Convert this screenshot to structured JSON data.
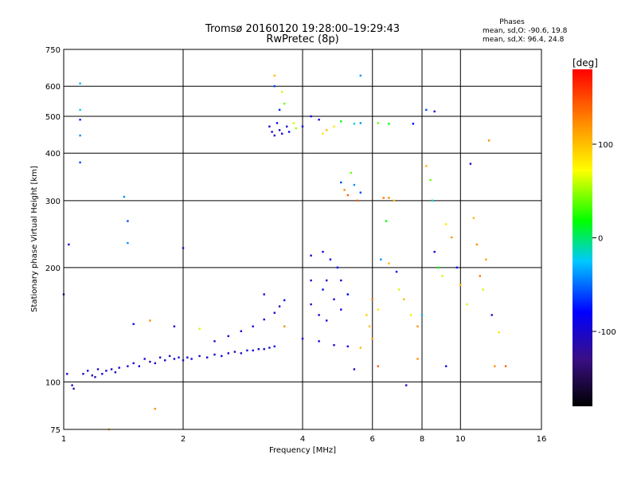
{
  "chart_data": {
    "type": "scatter",
    "title": "Tromsø 20160120 19:28:00–19:29:43",
    "subtitle": "RwPretec (8p)",
    "phases_box": {
      "heading": "Phases",
      "line_o": "mean, sd,O: -90.6, 19.8",
      "line_x": "mean, sd,X:  96.4, 24.8"
    },
    "xlabel": "Frequency [MHz]",
    "ylabel": "Stationary phase Virtual Height [km]",
    "x_scale": "log",
    "y_scale": "log",
    "xlim": [
      1,
      16
    ],
    "ylim": [
      75,
      750
    ],
    "x_ticks": [
      {
        "value": 1,
        "label": "1"
      },
      {
        "value": 2,
        "label": "2"
      },
      {
        "value": 4,
        "label": "4"
      },
      {
        "value": 6,
        "label": "6"
      },
      {
        "value": 8,
        "label": "8"
      },
      {
        "value": 10,
        "label": "10"
      },
      {
        "value": 16,
        "label": "16"
      }
    ],
    "y_ticks": [
      {
        "value": 75,
        "label": "75"
      },
      {
        "value": 100,
        "label": "100"
      },
      {
        "value": 200,
        "label": "200"
      },
      {
        "value": 300,
        "label": "300"
      },
      {
        "value": 400,
        "label": "400"
      },
      {
        "value": 500,
        "label": "500"
      },
      {
        "value": 600,
        "label": "600"
      },
      {
        "value": 750,
        "label": "750"
      }
    ],
    "grid": true,
    "colorbar": {
      "label": "[deg]",
      "range": [
        -180,
        180
      ],
      "tick_values": [
        100,
        0,
        -100
      ],
      "tick_labels": [
        "100",
        "0",
        "-100"
      ]
    },
    "points": [
      [
        1.0,
        170,
        -100
      ],
      [
        1.02,
        105,
        -95
      ],
      [
        1.03,
        230,
        -100
      ],
      [
        1.05,
        98,
        -110
      ],
      [
        1.06,
        96,
        -105
      ],
      [
        1.1,
        610,
        -30
      ],
      [
        1.1,
        520,
        -20
      ],
      [
        1.1,
        490,
        -70
      ],
      [
        1.1,
        445,
        -40
      ],
      [
        1.1,
        378,
        -60
      ],
      [
        1.12,
        105,
        -100
      ],
      [
        1.15,
        107,
        -100
      ],
      [
        1.18,
        104,
        -110
      ],
      [
        1.2,
        103,
        -110
      ],
      [
        1.22,
        108,
        -100
      ],
      [
        1.25,
        105,
        -95
      ],
      [
        1.28,
        107,
        -90
      ],
      [
        1.32,
        108,
        -100
      ],
      [
        1.35,
        106,
        -100
      ],
      [
        1.38,
        109,
        -95
      ],
      [
        1.42,
        307,
        -40
      ],
      [
        1.45,
        265,
        -60
      ],
      [
        1.45,
        232,
        -40
      ],
      [
        1.45,
        110,
        -100
      ],
      [
        1.5,
        112,
        -90
      ],
      [
        1.55,
        110,
        -95
      ],
      [
        1.6,
        115,
        -100
      ],
      [
        1.65,
        113,
        -105
      ],
      [
        1.7,
        112,
        -100
      ],
      [
        1.75,
        116,
        -100
      ],
      [
        1.8,
        114,
        -95
      ],
      [
        1.85,
        117,
        -100
      ],
      [
        1.9,
        115,
        -90
      ],
      [
        1.95,
        116,
        -105
      ],
      [
        2.0,
        114,
        -100
      ],
      [
        2.05,
        116,
        -95
      ],
      [
        2.1,
        115,
        -100
      ],
      [
        2.2,
        117,
        -100
      ],
      [
        2.3,
        116,
        -95
      ],
      [
        2.4,
        118,
        -100
      ],
      [
        2.5,
        117,
        -90
      ],
      [
        2.6,
        119,
        -100
      ],
      [
        2.7,
        120,
        -100
      ],
      [
        2.8,
        119,
        -95
      ],
      [
        2.9,
        121,
        -100
      ],
      [
        3.0,
        121,
        -90
      ],
      [
        3.1,
        122,
        -95
      ],
      [
        3.2,
        122,
        -100
      ],
      [
        3.3,
        123,
        -100
      ],
      [
        3.4,
        124,
        -90
      ],
      [
        2.4,
        128,
        -100
      ],
      [
        2.6,
        132,
        -95
      ],
      [
        2.8,
        136,
        -100
      ],
      [
        3.0,
        140,
        -90
      ],
      [
        3.2,
        146,
        -100
      ],
      [
        3.4,
        152,
        -95
      ],
      [
        3.5,
        158,
        -100
      ],
      [
        3.6,
        164,
        -90
      ],
      [
        3.3,
        470,
        -100
      ],
      [
        3.35,
        455,
        -95
      ],
      [
        3.4,
        445,
        -105
      ],
      [
        3.45,
        480,
        -90
      ],
      [
        3.5,
        460,
        -100
      ],
      [
        3.55,
        450,
        -95
      ],
      [
        3.5,
        520,
        -70
      ],
      [
        3.55,
        580,
        60
      ],
      [
        3.6,
        540,
        40
      ],
      [
        3.4,
        600,
        -60
      ],
      [
        3.65,
        470,
        -100
      ],
      [
        3.7,
        455,
        -90
      ],
      [
        3.8,
        480,
        60
      ],
      [
        3.85,
        465,
        50
      ],
      [
        4.0,
        470,
        -95
      ],
      [
        4.2,
        500,
        -100
      ],
      [
        4.4,
        490,
        -90
      ],
      [
        4.5,
        450,
        80
      ],
      [
        4.6,
        460,
        100
      ],
      [
        4.8,
        470,
        80
      ],
      [
        5.0,
        485,
        20
      ],
      [
        5.4,
        478,
        -20
      ],
      [
        5.6,
        480,
        -40
      ],
      [
        6.2,
        480,
        40
      ],
      [
        6.6,
        478,
        20
      ],
      [
        4.2,
        160,
        -100
      ],
      [
        4.4,
        150,
        -95
      ],
      [
        4.6,
        145,
        -100
      ],
      [
        4.5,
        175,
        -90
      ],
      [
        4.8,
        165,
        -100
      ],
      [
        5.0,
        155,
        -90
      ],
      [
        4.2,
        185,
        -100
      ],
      [
        4.6,
        185,
        -95
      ],
      [
        5.0,
        185,
        -100
      ],
      [
        5.2,
        170,
        -80
      ],
      [
        4.0,
        130,
        -100
      ],
      [
        4.4,
        128,
        -90
      ],
      [
        4.8,
        125,
        -100
      ],
      [
        5.2,
        124,
        -95
      ],
      [
        5.6,
        123,
        100
      ],
      [
        4.2,
        215,
        -100
      ],
      [
        4.5,
        220,
        -95
      ],
      [
        4.7,
        210,
        -90
      ],
      [
        4.9,
        200,
        -80
      ],
      [
        5.0,
        335,
        -60
      ],
      [
        5.1,
        320,
        120
      ],
      [
        5.2,
        310,
        140
      ],
      [
        5.4,
        330,
        -40
      ],
      [
        5.6,
        315,
        -60
      ],
      [
        5.3,
        355,
        40
      ],
      [
        5.5,
        300,
        140
      ],
      [
        5.8,
        150,
        90
      ],
      [
        5.9,
        140,
        100
      ],
      [
        6.0,
        165,
        130
      ],
      [
        6.2,
        155,
        80
      ],
      [
        6.0,
        130,
        110
      ],
      [
        6.4,
        305,
        130
      ],
      [
        6.6,
        305,
        120
      ],
      [
        6.8,
        300,
        100
      ],
      [
        6.5,
        265,
        20
      ],
      [
        6.3,
        210,
        -40
      ],
      [
        6.6,
        205,
        100
      ],
      [
        6.9,
        195,
        -80
      ],
      [
        7.0,
        175,
        60
      ],
      [
        7.2,
        165,
        100
      ],
      [
        7.5,
        150,
        80
      ],
      [
        7.8,
        140,
        120
      ],
      [
        8.0,
        150,
        -30
      ],
      [
        8.2,
        370,
        100
      ],
      [
        8.4,
        340,
        40
      ],
      [
        8.5,
        300,
        -20
      ],
      [
        8.6,
        220,
        -100
      ],
      [
        8.8,
        200,
        20
      ],
      [
        9.0,
        190,
        60
      ],
      [
        9.2,
        260,
        80
      ],
      [
        9.5,
        240,
        120
      ],
      [
        9.8,
        200,
        -80
      ],
      [
        10.0,
        180,
        100
      ],
      [
        10.4,
        160,
        60
      ],
      [
        10.8,
        270,
        100
      ],
      [
        11.0,
        230,
        120
      ],
      [
        11.2,
        190,
        130
      ],
      [
        11.4,
        175,
        60
      ],
      [
        11.6,
        210,
        110
      ],
      [
        12.0,
        150,
        -100
      ],
      [
        12.5,
        135,
        80
      ],
      [
        13.0,
        110,
        140
      ],
      [
        12.2,
        110,
        120
      ],
      [
        11.8,
        432,
        120
      ],
      [
        10.6,
        375,
        -100
      ],
      [
        8.6,
        515,
        -100
      ],
      [
        8.2,
        520,
        -60
      ],
      [
        7.6,
        478,
        -80
      ],
      [
        5.6,
        640,
        -40
      ],
      [
        3.4,
        640,
        100
      ],
      [
        1.3,
        75,
        100
      ],
      [
        1.7,
        85,
        120
      ],
      [
        2.0,
        225,
        -100
      ],
      [
        1.9,
        140,
        -100
      ],
      [
        1.65,
        145,
        120
      ],
      [
        1.5,
        142,
        -80
      ],
      [
        2.2,
        138,
        60
      ],
      [
        3.2,
        170,
        -100
      ],
      [
        3.6,
        140,
        120
      ],
      [
        7.3,
        98,
        -100
      ],
      [
        5.4,
        108,
        -100
      ],
      [
        6.2,
        110,
        140
      ],
      [
        7.8,
        115,
        120
      ],
      [
        9.2,
        110,
        -90
      ]
    ]
  }
}
